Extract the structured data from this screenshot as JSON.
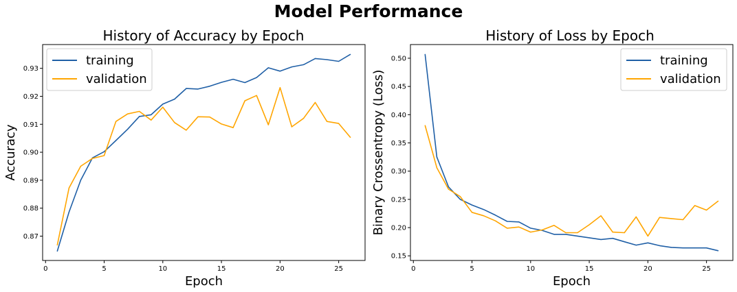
{
  "figure": {
    "title": "Model Performance"
  },
  "colors": {
    "training": "#1f5fa6",
    "validation": "#ffa500"
  },
  "chart_data": [
    {
      "type": "line",
      "title": "History of Accuracy by Epoch",
      "xlabel": "Epoch",
      "ylabel": "Accuracy",
      "x": [
        1,
        2,
        3,
        4,
        5,
        6,
        7,
        8,
        9,
        10,
        11,
        12,
        13,
        14,
        15,
        16,
        17,
        18,
        19,
        20,
        21,
        22,
        23,
        24,
        25,
        26
      ],
      "xlim": [
        -0.25,
        27.25
      ],
      "ylim": [
        0.8613,
        0.9385
      ],
      "xticks": [
        0,
        5,
        10,
        15,
        20,
        25
      ],
      "yticks": [
        0.87,
        0.88,
        0.89,
        0.9,
        0.91,
        0.92,
        0.93
      ],
      "ytick_labels": [
        "0.87",
        "0.88",
        "0.89",
        "0.90",
        "0.91",
        "0.92",
        "0.93"
      ],
      "grid": false,
      "legend_position": "upper-left",
      "series": [
        {
          "name": "training",
          "values": [
            0.8646,
            0.8786,
            0.89,
            0.898,
            0.9002,
            0.9042,
            0.9082,
            0.9128,
            0.9134,
            0.9172,
            0.919,
            0.9228,
            0.9226,
            0.9236,
            0.925,
            0.9261,
            0.9249,
            0.9267,
            0.9302,
            0.929,
            0.9305,
            0.9313,
            0.9335,
            0.9331,
            0.9325,
            0.935
          ]
        },
        {
          "name": "validation",
          "values": [
            0.8668,
            0.8872,
            0.895,
            0.8978,
            0.8988,
            0.911,
            0.9137,
            0.9146,
            0.9115,
            0.9161,
            0.9106,
            0.9079,
            0.9127,
            0.9126,
            0.9101,
            0.9088,
            0.9184,
            0.9203,
            0.9098,
            0.9231,
            0.9091,
            0.9121,
            0.9178,
            0.911,
            0.9103,
            0.9053
          ]
        }
      ]
    },
    {
      "type": "line",
      "title": "History of Loss by Epoch",
      "xlabel": "Epoch",
      "ylabel": "Binary Crossentropy (Loss)",
      "x": [
        1,
        2,
        3,
        4,
        5,
        6,
        7,
        8,
        9,
        10,
        11,
        12,
        13,
        14,
        15,
        16,
        17,
        18,
        19,
        20,
        21,
        22,
        23,
        24,
        25,
        26
      ],
      "xlim": [
        -0.25,
        27.25
      ],
      "ylim": [
        0.1418,
        0.5242
      ],
      "xticks": [
        0,
        5,
        10,
        15,
        20,
        25
      ],
      "yticks": [
        0.15,
        0.2,
        0.25,
        0.3,
        0.35,
        0.4,
        0.45,
        0.5
      ],
      "ytick_labels": [
        "0.15",
        "0.20",
        "0.25",
        "0.30",
        "0.35",
        "0.40",
        "0.45",
        "0.50"
      ],
      "grid": false,
      "legend_position": "upper-right",
      "series": [
        {
          "name": "training",
          "values": [
            0.507,
            0.325,
            0.272,
            0.25,
            0.24,
            0.232,
            0.222,
            0.211,
            0.21,
            0.199,
            0.195,
            0.188,
            0.188,
            0.185,
            0.182,
            0.179,
            0.181,
            0.175,
            0.169,
            0.173,
            0.168,
            0.165,
            0.164,
            0.164,
            0.164,
            0.159
          ]
        },
        {
          "name": "validation",
          "values": [
            0.381,
            0.306,
            0.268,
            0.255,
            0.227,
            0.221,
            0.212,
            0.199,
            0.201,
            0.192,
            0.196,
            0.204,
            0.191,
            0.191,
            0.205,
            0.221,
            0.192,
            0.191,
            0.219,
            0.185,
            0.218,
            0.216,
            0.214,
            0.239,
            0.231,
            0.247
          ]
        }
      ]
    }
  ]
}
